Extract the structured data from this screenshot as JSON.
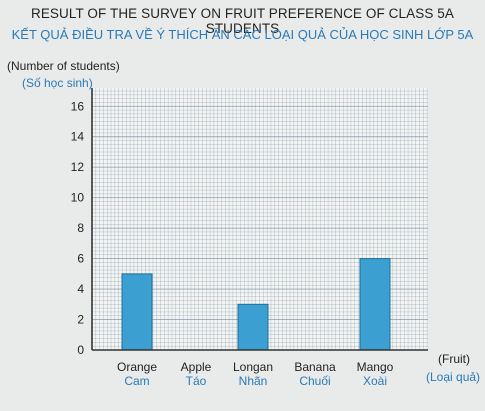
{
  "chart_data": {
    "type": "bar",
    "title": "RESULT OF THE SURVEY ON FRUIT PREFERENCE OF CLASS 5A STUDENTS",
    "subtitle": "KẾT QUẢ ĐIỀU TRA VỀ Ý THÍCH ĂN CÁC LOẠI QUẢ CỦA HỌC SINH LỚP 5A",
    "ylabel": "(Number of students)",
    "ylabel_vi": "(Số học sinh)",
    "xlabel": "(Fruit)",
    "xlabel_vi": "(Loại quả)",
    "categories": [
      "Orange",
      "Apple",
      "Longan",
      "Banana",
      "Mango"
    ],
    "categories_vi": [
      "Cam",
      "Táo",
      "Nhãn",
      "Chuối",
      "Xoài"
    ],
    "values": [
      5,
      0,
      3,
      0,
      6
    ],
    "ylim": [
      0,
      16
    ],
    "yticks": [
      0,
      2,
      4,
      6,
      8,
      10,
      12,
      14,
      16
    ],
    "grid": true,
    "bar_color": "#3b9fd1",
    "grid_color": "#8aa0b4"
  }
}
